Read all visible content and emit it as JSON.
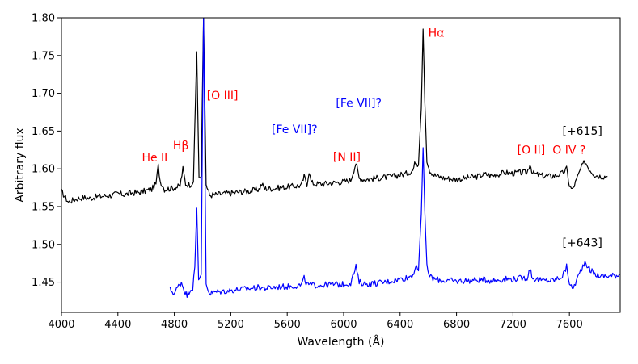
{
  "chart_data": {
    "type": "line",
    "xlabel": "Wavelength (Å)",
    "ylabel": "Arbitrary flux",
    "xlim": [
      4000,
      7960
    ],
    "ylim": [
      1.41,
      1.8
    ],
    "xticks": [
      4000,
      4400,
      4800,
      5200,
      5600,
      6000,
      6400,
      6800,
      7200,
      7600
    ],
    "yticks": [
      1.45,
      1.5,
      1.55,
      1.6,
      1.65,
      1.7,
      1.75,
      1.8
    ],
    "grid": false,
    "series": [
      {
        "name": "[+615]",
        "color": "#000000",
        "points": [
          [
            4000,
            1.57
          ],
          [
            4050,
            1.556
          ],
          [
            4100,
            1.56
          ],
          [
            4150,
            1.562
          ],
          [
            4200,
            1.561
          ],
          [
            4250,
            1.563
          ],
          [
            4300,
            1.564
          ],
          [
            4350,
            1.565
          ],
          [
            4400,
            1.567
          ],
          [
            4450,
            1.566
          ],
          [
            4500,
            1.568
          ],
          [
            4550,
            1.569
          ],
          [
            4600,
            1.571
          ],
          [
            4640,
            1.573
          ],
          [
            4670,
            1.58
          ],
          [
            4686,
            1.604
          ],
          [
            4700,
            1.584
          ],
          [
            4730,
            1.573
          ],
          [
            4770,
            1.574
          ],
          [
            4800,
            1.575
          ],
          [
            4840,
            1.577
          ],
          [
            4861,
            1.6
          ],
          [
            4880,
            1.58
          ],
          [
            4910,
            1.579
          ],
          [
            4935,
            1.583
          ],
          [
            4959,
            1.755
          ],
          [
            4975,
            1.585
          ],
          [
            4990,
            1.59
          ],
          [
            5007,
            1.8
          ],
          [
            5025,
            1.58
          ],
          [
            5050,
            1.565
          ],
          [
            5100,
            1.566
          ],
          [
            5150,
            1.567
          ],
          [
            5200,
            1.568
          ],
          [
            5250,
            1.569
          ],
          [
            5300,
            1.57
          ],
          [
            5350,
            1.571
          ],
          [
            5400,
            1.573
          ],
          [
            5420,
            1.58
          ],
          [
            5440,
            1.574
          ],
          [
            5500,
            1.574
          ],
          [
            5550,
            1.575
          ],
          [
            5600,
            1.576
          ],
          [
            5650,
            1.577
          ],
          [
            5700,
            1.578
          ],
          [
            5720,
            1.59
          ],
          [
            5740,
            1.58
          ],
          [
            5755,
            1.597
          ],
          [
            5770,
            1.582
          ],
          [
            5800,
            1.58
          ],
          [
            5850,
            1.58
          ],
          [
            5900,
            1.581
          ],
          [
            5950,
            1.582
          ],
          [
            6000,
            1.583
          ],
          [
            6050,
            1.585
          ],
          [
            6087,
            1.608
          ],
          [
            6110,
            1.587
          ],
          [
            6150,
            1.586
          ],
          [
            6200,
            1.587
          ],
          [
            6250,
            1.588
          ],
          [
            6300,
            1.589
          ],
          [
            6350,
            1.59
          ],
          [
            6400,
            1.592
          ],
          [
            6450,
            1.594
          ],
          [
            6490,
            1.598
          ],
          [
            6510,
            1.61
          ],
          [
            6530,
            1.605
          ],
          [
            6550,
            1.68
          ],
          [
            6563,
            1.785
          ],
          [
            6575,
            1.69
          ],
          [
            6590,
            1.612
          ],
          [
            6610,
            1.598
          ],
          [
            6640,
            1.592
          ],
          [
            6700,
            1.588
          ],
          [
            6750,
            1.587
          ],
          [
            6800,
            1.586
          ],
          [
            6850,
            1.587
          ],
          [
            6900,
            1.589
          ],
          [
            6950,
            1.59
          ],
          [
            7000,
            1.593
          ],
          [
            7050,
            1.591
          ],
          [
            7100,
            1.593
          ],
          [
            7150,
            1.595
          ],
          [
            7200,
            1.594
          ],
          [
            7250,
            1.595
          ],
          [
            7300,
            1.595
          ],
          [
            7320,
            1.607
          ],
          [
            7340,
            1.594
          ],
          [
            7400,
            1.591
          ],
          [
            7450,
            1.59
          ],
          [
            7500,
            1.591
          ],
          [
            7550,
            1.594
          ],
          [
            7580,
            1.6
          ],
          [
            7600,
            1.578
          ],
          [
            7620,
            1.572
          ],
          [
            7650,
            1.585
          ],
          [
            7680,
            1.6
          ],
          [
            7710,
            1.61
          ],
          [
            7740,
            1.6
          ],
          [
            7780,
            1.592
          ],
          [
            7830,
            1.59
          ],
          [
            7870,
            1.59
          ]
        ]
      },
      {
        "name": "[+643]",
        "color": "#0000ff",
        "points": [
          [
            4770,
            1.44
          ],
          [
            4800,
            1.435
          ],
          [
            4830,
            1.445
          ],
          [
            4850,
            1.45
          ],
          [
            4870,
            1.44
          ],
          [
            4890,
            1.432
          ],
          [
            4910,
            1.44
          ],
          [
            4930,
            1.442
          ],
          [
            4945,
            1.47
          ],
          [
            4959,
            1.548
          ],
          [
            4972,
            1.45
          ],
          [
            4990,
            1.46
          ],
          [
            5007,
            1.8
          ],
          [
            5025,
            1.448
          ],
          [
            5050,
            1.435
          ],
          [
            5100,
            1.437
          ],
          [
            5150,
            1.438
          ],
          [
            5200,
            1.439
          ],
          [
            5250,
            1.44
          ],
          [
            5300,
            1.441
          ],
          [
            5350,
            1.442
          ],
          [
            5400,
            1.443
          ],
          [
            5450,
            1.442
          ],
          [
            5500,
            1.443
          ],
          [
            5550,
            1.444
          ],
          [
            5600,
            1.444
          ],
          [
            5650,
            1.445
          ],
          [
            5700,
            1.446
          ],
          [
            5720,
            1.455
          ],
          [
            5740,
            1.447
          ],
          [
            5780,
            1.446
          ],
          [
            5800,
            1.446
          ],
          [
            5850,
            1.446
          ],
          [
            5900,
            1.447
          ],
          [
            5950,
            1.447
          ],
          [
            6000,
            1.447
          ],
          [
            6050,
            1.449
          ],
          [
            6087,
            1.47
          ],
          [
            6110,
            1.45
          ],
          [
            6150,
            1.448
          ],
          [
            6200,
            1.448
          ],
          [
            6250,
            1.449
          ],
          [
            6300,
            1.45
          ],
          [
            6350,
            1.452
          ],
          [
            6400,
            1.454
          ],
          [
            6450,
            1.456
          ],
          [
            6490,
            1.46
          ],
          [
            6510,
            1.47
          ],
          [
            6530,
            1.465
          ],
          [
            6550,
            1.54
          ],
          [
            6563,
            1.628
          ],
          [
            6575,
            1.545
          ],
          [
            6590,
            1.47
          ],
          [
            6610,
            1.458
          ],
          [
            6640,
            1.454
          ],
          [
            6700,
            1.452
          ],
          [
            6750,
            1.452
          ],
          [
            6800,
            1.451
          ],
          [
            6850,
            1.452
          ],
          [
            6900,
            1.452
          ],
          [
            6950,
            1.453
          ],
          [
            7000,
            1.453
          ],
          [
            7050,
            1.452
          ],
          [
            7100,
            1.453
          ],
          [
            7150,
            1.454
          ],
          [
            7200,
            1.454
          ],
          [
            7250,
            1.455
          ],
          [
            7300,
            1.456
          ],
          [
            7320,
            1.468
          ],
          [
            7340,
            1.455
          ],
          [
            7400,
            1.452
          ],
          [
            7450,
            1.452
          ],
          [
            7500,
            1.453
          ],
          [
            7550,
            1.458
          ],
          [
            7580,
            1.47
          ],
          [
            7600,
            1.45
          ],
          [
            7620,
            1.44
          ],
          [
            7650,
            1.452
          ],
          [
            7680,
            1.465
          ],
          [
            7710,
            1.478
          ],
          [
            7740,
            1.468
          ],
          [
            7780,
            1.46
          ],
          [
            7830,
            1.458
          ],
          [
            7880,
            1.458
          ],
          [
            7920,
            1.459
          ],
          [
            7960,
            1.46
          ]
        ]
      }
    ],
    "annotations": [
      {
        "text": "He II",
        "x": 4570,
        "y": 1.61,
        "color": "#ff0000"
      },
      {
        "text": "Hβ",
        "x": 4790,
        "y": 1.626,
        "color": "#ff0000"
      },
      {
        "text": "[O III]",
        "x": 5030,
        "y": 1.692,
        "color": "#ff0000"
      },
      {
        "text": "[Fe VII]?",
        "x": 5490,
        "y": 1.647,
        "color": "#0000ff"
      },
      {
        "text": "[N II]",
        "x": 5925,
        "y": 1.611,
        "color": "#ff0000"
      },
      {
        "text": "[Fe VII]?",
        "x": 5945,
        "y": 1.682,
        "color": "#0000ff"
      },
      {
        "text": "Hα",
        "x": 6600,
        "y": 1.775,
        "color": "#ff0000"
      },
      {
        "text": "[O II]",
        "x": 7230,
        "y": 1.62,
        "color": "#ff0000"
      },
      {
        "text": "O IV ?",
        "x": 7480,
        "y": 1.62,
        "color": "#ff0000"
      },
      {
        "text": "[+615]",
        "x": 7550,
        "y": 1.645,
        "color": "#000000"
      },
      {
        "text": "[+643]",
        "x": 7550,
        "y": 1.497,
        "color": "#000000"
      }
    ]
  }
}
